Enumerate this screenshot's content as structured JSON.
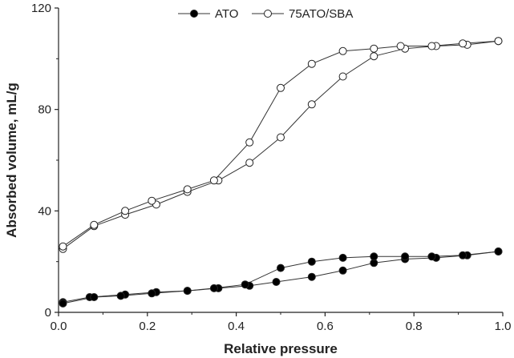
{
  "chart_data": {
    "type": "scatter",
    "title": "",
    "xlabel": "Relative pressure",
    "ylabel": "Absorbed volume, mL/g",
    "xlim": [
      0,
      1.0
    ],
    "ylim": [
      0,
      120
    ],
    "xticks": [
      "0.0",
      "0.2",
      "0.4",
      "0.6",
      "0.8",
      "1.0"
    ],
    "yticks": [
      "0",
      "40",
      "80",
      "120"
    ],
    "grid": false,
    "legend_position": "top-center",
    "series": [
      {
        "name": "ATO",
        "marker": "filled-circle",
        "color": "#000000",
        "adsorption": {
          "x": [
            0.01,
            0.07,
            0.15,
            0.22,
            0.29,
            0.36,
            0.43,
            0.49,
            0.57,
            0.64,
            0.71,
            0.78,
            0.85,
            0.92,
            0.99
          ],
          "y": [
            4,
            6,
            7,
            8,
            8.5,
            9.5,
            10.5,
            12,
            14,
            16.5,
            19.5,
            21,
            21.5,
            22.5,
            24
          ]
        },
        "desorption": {
          "x": [
            0.99,
            0.91,
            0.84,
            0.78,
            0.71,
            0.64,
            0.57,
            0.5,
            0.42,
            0.35,
            0.29,
            0.21,
            0.14,
            0.08,
            0.01
          ],
          "y": [
            24,
            22.5,
            22,
            22,
            22,
            21.5,
            20,
            17.5,
            11,
            9.5,
            8.5,
            7.5,
            6.5,
            6,
            3.5
          ]
        }
      },
      {
        "name": "75ATO/SBA",
        "marker": "open-circle",
        "color": "#000000",
        "adsorption": {
          "x": [
            0.01,
            0.08,
            0.15,
            0.22,
            0.29,
            0.36,
            0.43,
            0.5,
            0.57,
            0.64,
            0.71,
            0.78,
            0.85,
            0.92,
            0.99
          ],
          "y": [
            25,
            34,
            38.5,
            42.5,
            47.5,
            52,
            59,
            69,
            82,
            93,
            101,
            104,
            105,
            105.5,
            107
          ]
        },
        "desorption": {
          "x": [
            0.99,
            0.91,
            0.84,
            0.77,
            0.71,
            0.64,
            0.57,
            0.5,
            0.43,
            0.35,
            0.29,
            0.21,
            0.15,
            0.08,
            0.01
          ],
          "y": [
            107,
            106,
            105,
            105,
            104,
            103,
            98,
            88.5,
            67,
            52,
            48.5,
            44,
            40,
            34.5,
            26
          ]
        }
      }
    ]
  }
}
